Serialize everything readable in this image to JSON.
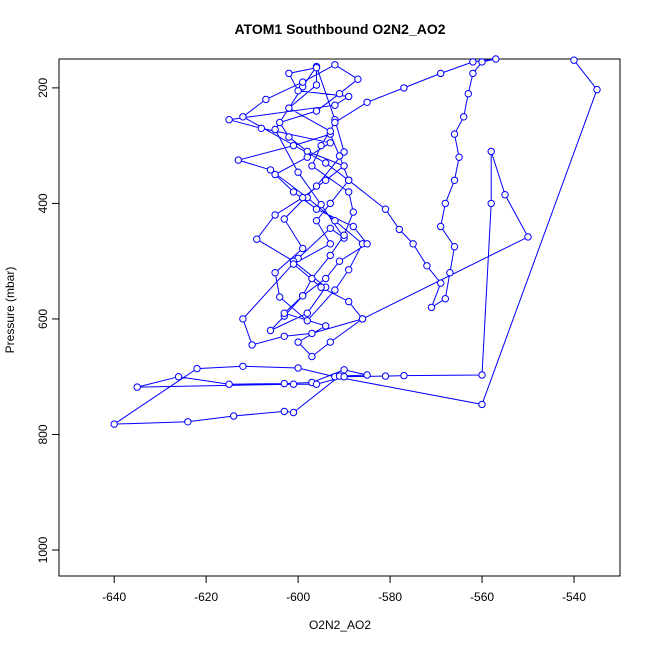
{
  "chart_data": {
    "type": "line",
    "title": "ATOM1 Southbound O2N2_AO2",
    "xlabel": "O2N2_AO2",
    "ylabel": "Pressure (mbar)",
    "xlim": [
      -652,
      -530
    ],
    "ylim": [
      1045,
      150
    ],
    "y_reversed": true,
    "x_ticks": [
      "-640",
      "-620",
      "-600",
      "-580",
      "-560",
      "-540"
    ],
    "y_ticks": [
      "200",
      "400",
      "600",
      "800",
      "1000"
    ],
    "grid": false,
    "legend": "none",
    "series": [
      {
        "color": "#0000ff",
        "marker": "open-circle",
        "x": [
          -540,
          -535,
          -560,
          -592,
          -600,
          -612,
          -622,
          -640,
          -624,
          -614,
          -603,
          -601,
          -591,
          -585,
          -590,
          -597,
          -603,
          -615,
          -626,
          -635,
          -601,
          -596,
          -590,
          -581,
          -577,
          -560,
          -558,
          -558,
          -555,
          -550,
          -586,
          -597,
          -603,
          -610,
          -612,
          -600,
          -593,
          -590,
          -595,
          -600,
          -605,
          -599,
          -596,
          -592,
          -590,
          -596,
          -603,
          -599,
          -605,
          -604,
          -598,
          -592,
          -589,
          -586,
          -592,
          -598,
          -606,
          -613,
          -601,
          -593,
          -591,
          -589,
          -581,
          -578,
          -575,
          -572,
          -569,
          -571,
          -568,
          -567,
          -566,
          -569,
          -568,
          -566,
          -565,
          -566,
          -564,
          -563,
          -562,
          -560,
          -557,
          -562,
          -569,
          -577,
          -585,
          -592,
          -595,
          -597,
          -589,
          -588,
          -590,
          -593,
          -597,
          -599,
          -603,
          -606,
          -598,
          -594,
          -601,
          -609,
          -605,
          -599,
          -594,
          -590,
          -598,
          -602,
          -604,
          -596,
          -591,
          -587,
          -592,
          -599,
          -607,
          -612,
          -594,
          -589,
          -593,
          -596,
          -593,
          -601,
          -595,
          -589,
          -586,
          -593,
          -597,
          -600,
          -594,
          -603,
          -599,
          -594,
          -591,
          -585,
          -588,
          -596,
          -601,
          -605,
          -598,
          -593,
          -608,
          -615,
          -592,
          -589,
          -600,
          -602,
          -596,
          -596,
          -602,
          -593
        ],
        "y": [
          152,
          203,
          748,
          700,
          685,
          682,
          686,
          782,
          778,
          768,
          760,
          762,
          699,
          697,
          688,
          710,
          712,
          713,
          700,
          718,
          713,
          713,
          700,
          699,
          698,
          697,
          400,
          310,
          385,
          458,
          600,
          625,
          630,
          645,
          600,
          495,
          443,
          460,
          402,
          346,
          272,
          198,
          163,
          255,
          311,
          370,
          427,
          478,
          520,
          562,
          603,
          550,
          515,
          470,
          430,
          390,
          342,
          325,
          300,
          280,
          318,
          360,
          410,
          445,
          470,
          508,
          538,
          580,
          565,
          520,
          475,
          440,
          400,
          360,
          320,
          280,
          250,
          210,
          175,
          155,
          150,
          155,
          175,
          200,
          225,
          260,
          300,
          335,
          380,
          415,
          455,
          490,
          530,
          560,
          595,
          620,
          590,
          545,
          500,
          462,
          420,
          390,
          360,
          335,
          310,
          285,
          260,
          240,
          210,
          185,
          160,
          190,
          220,
          250,
          330,
          360,
          400,
          430,
          470,
          505,
          545,
          570,
          600,
          640,
          665,
          640,
          612,
          590,
          560,
          530,
          500,
          470,
          440,
          410,
          380,
          350,
          320,
          295,
          270,
          255,
          230,
          215,
          205,
          175,
          165,
          195,
          235,
          275
        ]
      }
    ]
  }
}
